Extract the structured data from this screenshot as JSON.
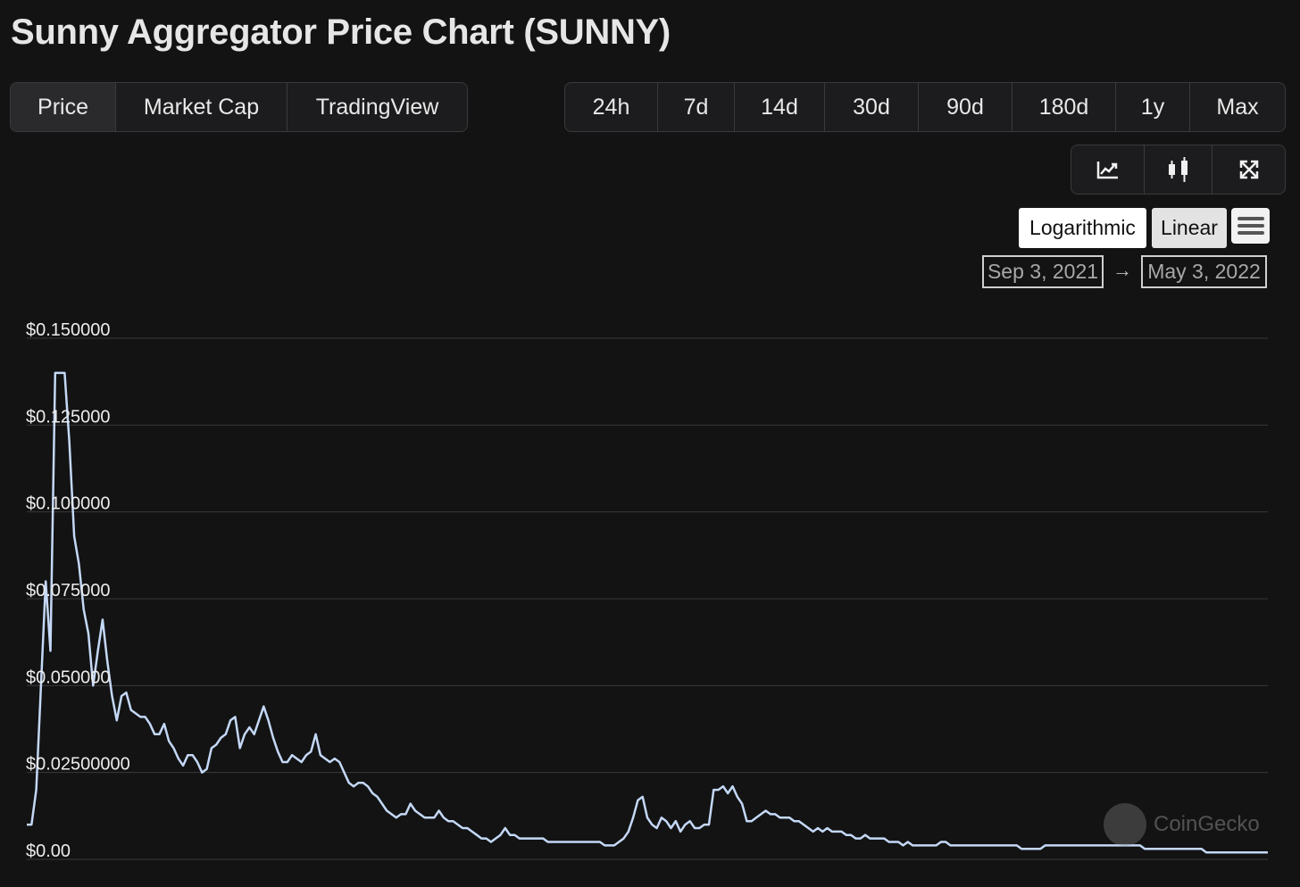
{
  "page": {
    "title": "Sunny Aggregator Price Chart (SUNNY)"
  },
  "view_tabs": [
    {
      "label": "Price",
      "active": true
    },
    {
      "label": "Market Cap",
      "active": false
    },
    {
      "label": "TradingView",
      "active": false
    }
  ],
  "range_tabs": [
    {
      "label": "24h"
    },
    {
      "label": "7d"
    },
    {
      "label": "14d"
    },
    {
      "label": "30d"
    },
    {
      "label": "90d"
    },
    {
      "label": "180d"
    },
    {
      "label": "1y"
    },
    {
      "label": "Max"
    }
  ],
  "tools": [
    {
      "icon": "line-chart-icon"
    },
    {
      "icon": "candlestick-icon"
    },
    {
      "icon": "fullscreen-icon"
    }
  ],
  "scale": {
    "log_label": "Logarithmic",
    "linear_label": "Linear",
    "selected": "Linear"
  },
  "date_range": {
    "from": "Sep 3, 2021",
    "arrow": "→",
    "to": "May 3, 2022"
  },
  "watermark": {
    "text": "CoinGecko"
  },
  "colors": {
    "background": "#131314",
    "line": "#c4d8f6",
    "grid": "#3a3a3c"
  },
  "chart_data": {
    "type": "line",
    "title": "",
    "xlabel": "",
    "ylabel": "",
    "x_range": [
      "2021-09-03",
      "2022-05-03"
    ],
    "ylim": [
      0,
      0.15
    ],
    "y_ticks": [
      0,
      0.025,
      0.05,
      0.075,
      0.1,
      0.125,
      0.15
    ],
    "y_tick_labels": [
      "$0.00",
      "$0.02500000",
      "$0.050000",
      "$0.075000",
      "$0.100000",
      "$0.125000",
      "$0.150000"
    ],
    "grid": true,
    "legend": "none",
    "series": [
      {
        "values": [
          0.01,
          0.01,
          0.02,
          0.05,
          0.08,
          0.06,
          0.14,
          0.14,
          0.14,
          0.12,
          0.093,
          0.085,
          0.072,
          0.065,
          0.05,
          0.06,
          0.069,
          0.057,
          0.047,
          0.04,
          0.047,
          0.048,
          0.043,
          0.042,
          0.041,
          0.041,
          0.039,
          0.036,
          0.036,
          0.039,
          0.034,
          0.032,
          0.029,
          0.027,
          0.03,
          0.03,
          0.028,
          0.025,
          0.026,
          0.032,
          0.033,
          0.035,
          0.036,
          0.04,
          0.041,
          0.032,
          0.036,
          0.038,
          0.036,
          0.04,
          0.044,
          0.04,
          0.035,
          0.031,
          0.028,
          0.028,
          0.03,
          0.029,
          0.028,
          0.03,
          0.031,
          0.036,
          0.03,
          0.029,
          0.028,
          0.029,
          0.028,
          0.025,
          0.022,
          0.021,
          0.022,
          0.022,
          0.021,
          0.019,
          0.018,
          0.016,
          0.014,
          0.013,
          0.012,
          0.013,
          0.013,
          0.016,
          0.014,
          0.013,
          0.012,
          0.012,
          0.012,
          0.014,
          0.012,
          0.011,
          0.011,
          0.01,
          0.009,
          0.009,
          0.008,
          0.007,
          0.006,
          0.006,
          0.005,
          0.006,
          0.007,
          0.009,
          0.007,
          0.007,
          0.006,
          0.006,
          0.006,
          0.006,
          0.006,
          0.006,
          0.005,
          0.005,
          0.005,
          0.005,
          0.005,
          0.005,
          0.005,
          0.005,
          0.005,
          0.005,
          0.005,
          0.005,
          0.004,
          0.004,
          0.004,
          0.005,
          0.006,
          0.008,
          0.012,
          0.017,
          0.018,
          0.012,
          0.01,
          0.009,
          0.012,
          0.011,
          0.009,
          0.011,
          0.008,
          0.01,
          0.011,
          0.009,
          0.009,
          0.01,
          0.01,
          0.02,
          0.02,
          0.021,
          0.019,
          0.021,
          0.018,
          0.016,
          0.011,
          0.011,
          0.012,
          0.013,
          0.014,
          0.013,
          0.013,
          0.012,
          0.012,
          0.012,
          0.011,
          0.011,
          0.01,
          0.009,
          0.008,
          0.009,
          0.008,
          0.009,
          0.008,
          0.008,
          0.008,
          0.007,
          0.007,
          0.006,
          0.006,
          0.007,
          0.006,
          0.006,
          0.006,
          0.006,
          0.005,
          0.005,
          0.005,
          0.004,
          0.005,
          0.004,
          0.004,
          0.004,
          0.004,
          0.004,
          0.004,
          0.005,
          0.005,
          0.004,
          0.004,
          0.004,
          0.004,
          0.004,
          0.004,
          0.004,
          0.004,
          0.004,
          0.004,
          0.004,
          0.004,
          0.004,
          0.004,
          0.004,
          0.003,
          0.003,
          0.003,
          0.003,
          0.003,
          0.004,
          0.004,
          0.004,
          0.004,
          0.004,
          0.004,
          0.004,
          0.004,
          0.004,
          0.004,
          0.004,
          0.004,
          0.004,
          0.004,
          0.004,
          0.004,
          0.004,
          0.004,
          0.004,
          0.004,
          0.004,
          0.003,
          0.003,
          0.003,
          0.003,
          0.003,
          0.003,
          0.003,
          0.003,
          0.003,
          0.003,
          0.003,
          0.003,
          0.003,
          0.002,
          0.002,
          0.002,
          0.002,
          0.002,
          0.002,
          0.002,
          0.002,
          0.002,
          0.002,
          0.002,
          0.002,
          0.002,
          0.002
        ]
      }
    ]
  }
}
